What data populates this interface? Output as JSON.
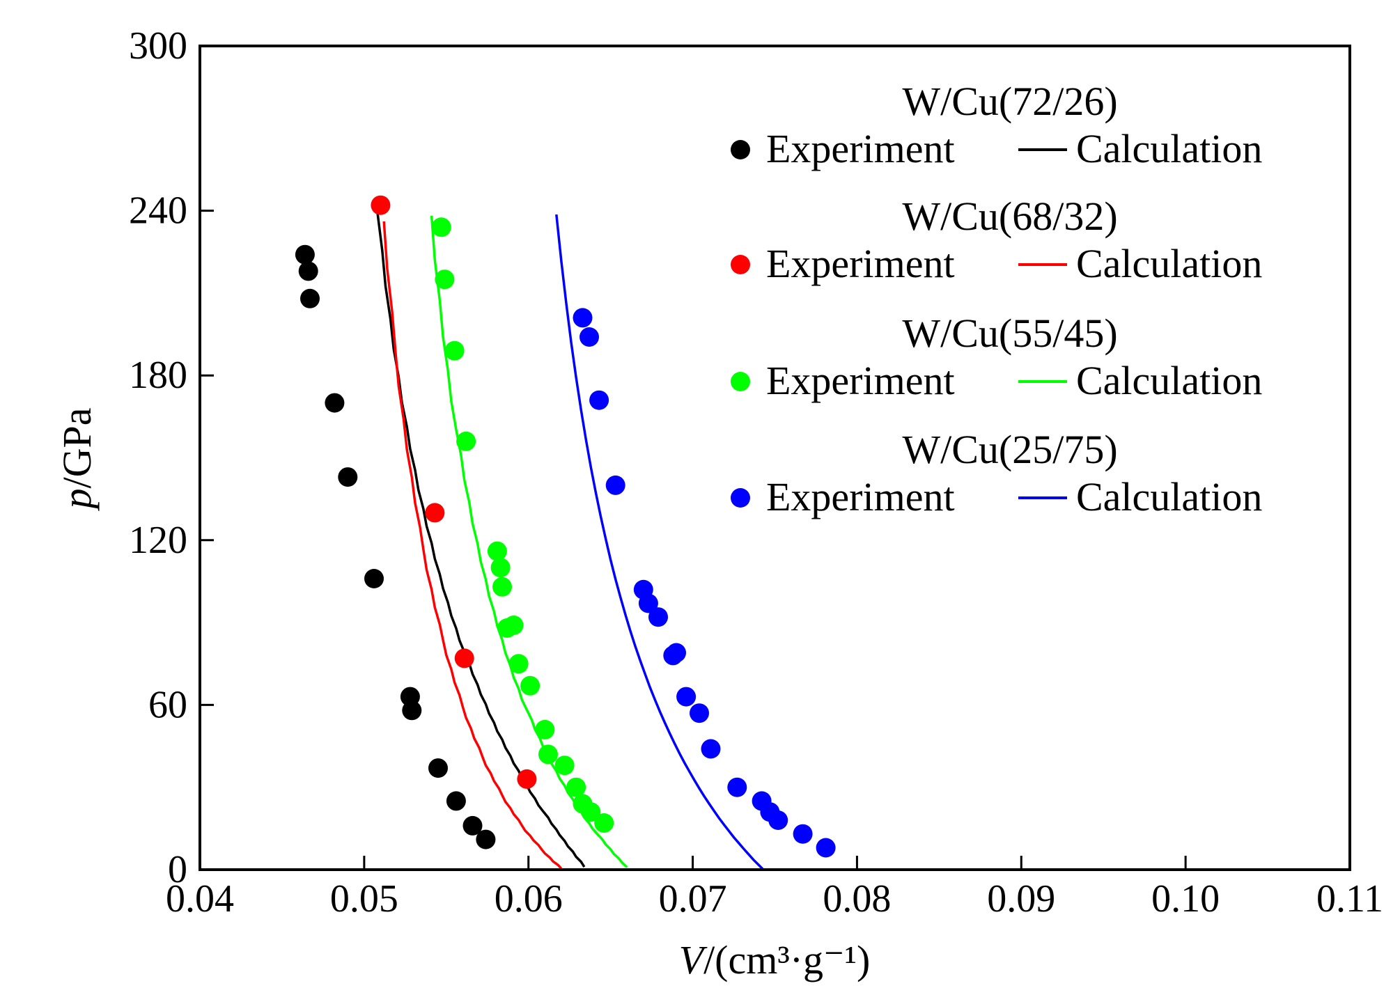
{
  "chart_data": {
    "type": "scatter",
    "xlabel_var": "V",
    "xlabel_unit": "/(cm³·g⁻¹)",
    "ylabel_var": "p",
    "ylabel_unit": "/GPa",
    "xlim": [
      0.04,
      0.11
    ],
    "ylim": [
      0,
      300
    ],
    "xticks": [
      "0.04",
      "0.05",
      "0.06",
      "0.07",
      "0.08",
      "0.09",
      "0.10",
      "0.11"
    ],
    "yticks": [
      "0",
      "60",
      "120",
      "180",
      "240",
      "300"
    ],
    "legend_position": "top-right",
    "experiment_label": "Experiment",
    "calculation_label": "Calculation",
    "series": [
      {
        "name": "W/Cu(72/26)",
        "color": "#000000",
        "experiment": [
          [
            0.0464,
            224
          ],
          [
            0.0466,
            218
          ],
          [
            0.0467,
            208
          ],
          [
            0.0482,
            170
          ],
          [
            0.049,
            143
          ],
          [
            0.0506,
            106
          ],
          [
            0.0528,
            63
          ],
          [
            0.0529,
            58
          ],
          [
            0.0545,
            37
          ],
          [
            0.0556,
            25
          ],
          [
            0.0566,
            16
          ],
          [
            0.0574,
            11
          ]
        ],
        "calculation": [
          [
            0.0508,
            239.8
          ],
          [
            0.0511,
            225.5
          ],
          [
            0.0513,
            212.5
          ],
          [
            0.0516,
            200.5
          ],
          [
            0.0518,
            189.5
          ],
          [
            0.0521,
            179.4
          ],
          [
            0.0523,
            170.1
          ],
          [
            0.0526,
            161.3
          ],
          [
            0.0528,
            153.2
          ],
          [
            0.0531,
            145.5
          ],
          [
            0.0533,
            138.3
          ],
          [
            0.0536,
            131.5
          ],
          [
            0.0538,
            125.1
          ],
          [
            0.0541,
            119.0
          ],
          [
            0.0543,
            113.2
          ],
          [
            0.0546,
            107.6
          ],
          [
            0.0548,
            102.4
          ],
          [
            0.0551,
            97.3
          ],
          [
            0.0553,
            92.5
          ],
          [
            0.0556,
            87.9
          ],
          [
            0.0558,
            83.5
          ],
          [
            0.0561,
            79.2
          ],
          [
            0.0564,
            75.1
          ],
          [
            0.0566,
            71.2
          ],
          [
            0.0569,
            67.4
          ],
          [
            0.0571,
            63.8
          ],
          [
            0.0574,
            60.3
          ],
          [
            0.0576,
            56.9
          ],
          [
            0.0579,
            53.6
          ],
          [
            0.0581,
            50.4
          ],
          [
            0.0584,
            47.4
          ],
          [
            0.0586,
            44.4
          ],
          [
            0.0589,
            41.5
          ],
          [
            0.0591,
            38.7
          ],
          [
            0.0594,
            36.0
          ],
          [
            0.0596,
            33.4
          ],
          [
            0.0599,
            30.8
          ],
          [
            0.0601,
            28.3
          ],
          [
            0.0604,
            25.9
          ],
          [
            0.0606,
            23.5
          ],
          [
            0.0609,
            21.2
          ],
          [
            0.0612,
            19.0
          ],
          [
            0.0614,
            16.8
          ],
          [
            0.0617,
            14.6
          ],
          [
            0.0619,
            12.6
          ],
          [
            0.0622,
            10.5
          ],
          [
            0.0624,
            8.5
          ],
          [
            0.0627,
            6.6
          ],
          [
            0.0629,
            4.7
          ],
          [
            0.0632,
            2.9
          ],
          [
            0.0634,
            1.0
          ]
        ]
      },
      {
        "name": "W/Cu(68/32)",
        "color": "#ff0000",
        "experiment": [
          [
            0.051,
            242
          ],
          [
            0.0543,
            130
          ],
          [
            0.0561,
            77
          ],
          [
            0.0599,
            33
          ]
        ],
        "calculation": [
          [
            0.0512,
            236.1
          ],
          [
            0.0514,
            218.9
          ],
          [
            0.0517,
            203.2
          ],
          [
            0.0519,
            189.0
          ],
          [
            0.0521,
            176.0
          ],
          [
            0.0524,
            164.0
          ],
          [
            0.0526,
            153.0
          ],
          [
            0.0529,
            142.9
          ],
          [
            0.0531,
            133.5
          ],
          [
            0.0534,
            124.8
          ],
          [
            0.0536,
            116.7
          ],
          [
            0.0538,
            109.2
          ],
          [
            0.0541,
            102.1
          ],
          [
            0.0543,
            95.5
          ],
          [
            0.0546,
            89.3
          ],
          [
            0.0548,
            83.6
          ],
          [
            0.055,
            78.1
          ],
          [
            0.0553,
            73.0
          ],
          [
            0.0555,
            68.2
          ],
          [
            0.0558,
            63.6
          ],
          [
            0.056,
            59.3
          ],
          [
            0.0562,
            55.3
          ],
          [
            0.0565,
            51.4
          ],
          [
            0.0567,
            47.8
          ],
          [
            0.057,
            44.4
          ],
          [
            0.0572,
            41.1
          ],
          [
            0.0574,
            38.0
          ],
          [
            0.0577,
            35.1
          ],
          [
            0.0579,
            32.3
          ],
          [
            0.0582,
            29.6
          ],
          [
            0.0584,
            27.1
          ],
          [
            0.0586,
            24.7
          ],
          [
            0.0589,
            22.4
          ],
          [
            0.0591,
            20.2
          ],
          [
            0.0594,
            18.1
          ],
          [
            0.0596,
            16.1
          ],
          [
            0.0598,
            14.2
          ],
          [
            0.0601,
            12.4
          ],
          [
            0.0603,
            10.7
          ],
          [
            0.0606,
            9.0
          ],
          [
            0.0608,
            7.4
          ],
          [
            0.061,
            5.9
          ],
          [
            0.0613,
            4.4
          ],
          [
            0.0615,
            3.0
          ],
          [
            0.0618,
            1.7
          ],
          [
            0.062,
            0.4
          ]
        ]
      },
      {
        "name": "W/Cu(55/45)",
        "color": "#00ff00",
        "experiment": [
          [
            0.0547,
            234
          ],
          [
            0.0549,
            215
          ],
          [
            0.0555,
            189
          ],
          [
            0.0562,
            156
          ],
          [
            0.0581,
            116
          ],
          [
            0.0583,
            110
          ],
          [
            0.0584,
            103
          ],
          [
            0.0587,
            88
          ],
          [
            0.0591,
            89
          ],
          [
            0.0594,
            75
          ],
          [
            0.0601,
            67
          ],
          [
            0.061,
            51
          ],
          [
            0.0612,
            42
          ],
          [
            0.0622,
            38
          ],
          [
            0.0629,
            30
          ],
          [
            0.0633,
            24
          ],
          [
            0.0638,
            21
          ],
          [
            0.0646,
            17
          ]
        ],
        "calculation": [
          [
            0.0541,
            238.2
          ],
          [
            0.0543,
            222.0
          ],
          [
            0.0546,
            207.3
          ],
          [
            0.0548,
            194.0
          ],
          [
            0.0551,
            181.8
          ],
          [
            0.0553,
            170.6
          ],
          [
            0.0556,
            160.3
          ],
          [
            0.0559,
            150.8
          ],
          [
            0.0561,
            141.9
          ],
          [
            0.0564,
            133.7
          ],
          [
            0.0566,
            126.0
          ],
          [
            0.0569,
            118.8
          ],
          [
            0.0571,
            112.1
          ],
          [
            0.0574,
            105.7
          ],
          [
            0.0576,
            99.7
          ],
          [
            0.0579,
            94.1
          ],
          [
            0.0581,
            88.8
          ],
          [
            0.0584,
            83.7
          ],
          [
            0.0586,
            78.9
          ],
          [
            0.0589,
            74.3
          ],
          [
            0.0591,
            70.0
          ],
          [
            0.0594,
            65.9
          ],
          [
            0.0596,
            61.9
          ],
          [
            0.0599,
            58.2
          ],
          [
            0.0602,
            54.6
          ],
          [
            0.0604,
            51.1
          ],
          [
            0.0607,
            47.8
          ],
          [
            0.0609,
            44.6
          ],
          [
            0.0612,
            41.6
          ],
          [
            0.0614,
            38.7
          ],
          [
            0.0617,
            35.9
          ],
          [
            0.0619,
            33.2
          ],
          [
            0.0622,
            30.6
          ],
          [
            0.0624,
            28.1
          ],
          [
            0.0627,
            25.7
          ],
          [
            0.0629,
            23.4
          ],
          [
            0.0632,
            21.1
          ],
          [
            0.0634,
            19.0
          ],
          [
            0.0637,
            16.9
          ],
          [
            0.0639,
            14.9
          ],
          [
            0.0642,
            12.9
          ],
          [
            0.0645,
            11.0
          ],
          [
            0.0647,
            9.2
          ],
          [
            0.065,
            7.4
          ],
          [
            0.0652,
            5.7
          ],
          [
            0.0655,
            4.1
          ],
          [
            0.0657,
            2.5
          ],
          [
            0.066,
            0.9
          ]
        ]
      },
      {
        "name": "W/Cu(25/75)",
        "color": "#0000ff",
        "experiment": [
          [
            0.0633,
            201
          ],
          [
            0.0637,
            194
          ],
          [
            0.0643,
            171
          ],
          [
            0.0653,
            140
          ],
          [
            0.067,
            102
          ],
          [
            0.0673,
            97
          ],
          [
            0.0679,
            92
          ],
          [
            0.0688,
            78
          ],
          [
            0.069,
            79
          ],
          [
            0.0696,
            63
          ],
          [
            0.0704,
            57
          ],
          [
            0.0711,
            44
          ],
          [
            0.0727,
            30
          ],
          [
            0.0742,
            25
          ],
          [
            0.0747,
            21
          ],
          [
            0.0752,
            18
          ],
          [
            0.0767,
            13
          ],
          [
            0.0781,
            8
          ]
        ],
        "calculation": [
          [
            0.0617,
            238.6
          ],
          [
            0.062,
            221.6
          ],
          [
            0.0623,
            206.2
          ],
          [
            0.0626,
            192.1
          ],
          [
            0.0629,
            179.3
          ],
          [
            0.0632,
            167.5
          ],
          [
            0.0635,
            156.6
          ],
          [
            0.0638,
            146.6
          ],
          [
            0.0641,
            137.3
          ],
          [
            0.0644,
            128.6
          ],
          [
            0.0647,
            120.5
          ],
          [
            0.065,
            112.9
          ],
          [
            0.0653,
            105.8
          ],
          [
            0.0656,
            99.2
          ],
          [
            0.0659,
            92.9
          ],
          [
            0.0662,
            87.0
          ],
          [
            0.0665,
            81.4
          ],
          [
            0.0668,
            76.2
          ],
          [
            0.0671,
            71.2
          ],
          [
            0.0674,
            66.4
          ],
          [
            0.0677,
            61.9
          ],
          [
            0.068,
            57.6
          ],
          [
            0.0683,
            53.5
          ],
          [
            0.0686,
            49.6
          ],
          [
            0.0689,
            45.9
          ],
          [
            0.0692,
            42.3
          ],
          [
            0.0695,
            38.9
          ],
          [
            0.0698,
            35.7
          ],
          [
            0.0701,
            32.6
          ],
          [
            0.0704,
            29.6
          ],
          [
            0.0707,
            26.7
          ],
          [
            0.071,
            24.0
          ],
          [
            0.0713,
            21.4
          ],
          [
            0.0716,
            18.8
          ],
          [
            0.0719,
            16.4
          ],
          [
            0.0722,
            14.1
          ],
          [
            0.0725,
            11.8
          ],
          [
            0.0728,
            9.7
          ],
          [
            0.0731,
            7.6
          ],
          [
            0.0734,
            5.6
          ],
          [
            0.0737,
            3.6
          ],
          [
            0.074,
            1.8
          ],
          [
            0.0743,
            0.0
          ]
        ]
      }
    ]
  }
}
